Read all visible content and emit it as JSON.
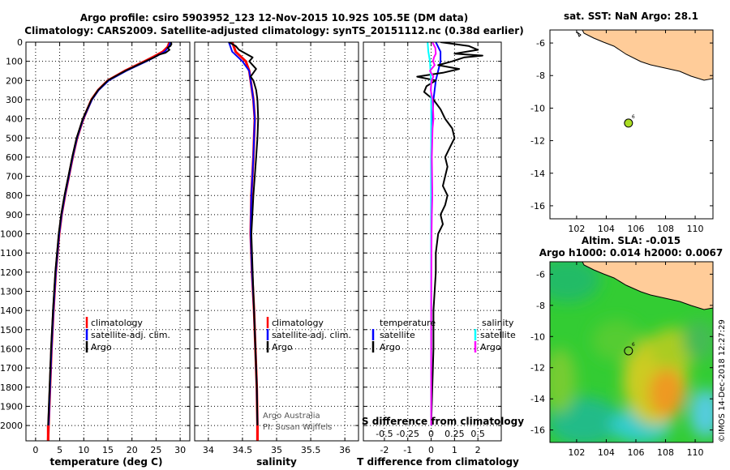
{
  "title": {
    "line1": "Argo profile: csiro 5903952_123 12-Nov-2015 10.92S 105.5E (DM data)",
    "line2": "Climatology: CARS2009. Satellite-adjusted climatology: synTS_20151112.nc (0.38d earlier)"
  },
  "colors": {
    "climatology": "#ff0000",
    "satellite": "#0000ff",
    "argo": "#000000",
    "sat_salinity": "#00ffff",
    "argo_salinity": "#ff00ff",
    "land": "#ffcc99"
  },
  "chart_data": [
    {
      "type": "line",
      "name": "temperature-profile",
      "xlabel": "temperature (deg C)",
      "xlim": [
        -2,
        32
      ],
      "ylim": [
        0,
        2080
      ],
      "xticks": [
        0,
        5,
        10,
        15,
        20,
        25,
        30
      ],
      "yticks": [
        0,
        100,
        200,
        300,
        400,
        500,
        600,
        700,
        800,
        900,
        1000,
        1100,
        1200,
        1300,
        1400,
        1500,
        1600,
        1700,
        1800,
        1900,
        2000
      ],
      "legend": [
        "climatology",
        "satellite-adj. clim.",
        "Argo"
      ],
      "series": [
        {
          "name": "climatology",
          "pressure": [
            0,
            25,
            50,
            75,
            100,
            150,
            200,
            250,
            300,
            400,
            500,
            600,
            700,
            800,
            900,
            1000,
            1200,
            1400,
            1600,
            1800,
            2000,
            2080
          ],
          "values": [
            27.8,
            27.4,
            26.4,
            24.6,
            22.6,
            18.5,
            15.0,
            13.0,
            11.6,
            9.9,
            8.6,
            7.7,
            6.9,
            6.1,
            5.4,
            4.9,
            4.2,
            3.7,
            3.3,
            3.0,
            2.7,
            2.6
          ]
        },
        {
          "name": "satellite-adj. clim.",
          "pressure": [
            0,
            25,
            50,
            75,
            100,
            150,
            200,
            250,
            300,
            400,
            500,
            600,
            700,
            800,
            900,
            1000,
            1200,
            1400,
            1600,
            1800,
            2000,
            2080
          ],
          "values": [
            28.0,
            27.6,
            26.8,
            25.0,
            23.0,
            18.8,
            15.2,
            13.1,
            11.7,
            9.9,
            8.6,
            7.7,
            6.9,
            6.1,
            5.4,
            4.9,
            4.2,
            3.7,
            3.3,
            3.0,
            2.7,
            2.6
          ]
        },
        {
          "name": "Argo",
          "pressure": [
            0,
            10,
            20,
            30,
            40,
            55,
            65,
            80,
            100,
            150,
            200,
            250,
            300,
            400,
            500,
            600,
            700,
            800,
            900,
            1000,
            1200,
            1400,
            1600,
            1800,
            2000
          ],
          "values": [
            28.1,
            28.2,
            28.0,
            27.4,
            27.8,
            27.0,
            25.6,
            24.6,
            22.8,
            18.6,
            15.0,
            13.0,
            11.6,
            9.8,
            8.5,
            7.6,
            6.8,
            6.0,
            5.3,
            4.8,
            4.1,
            3.6,
            3.2,
            2.9,
            2.6
          ]
        }
      ]
    },
    {
      "type": "line",
      "name": "salinity-profile",
      "xlabel": "salinity",
      "xlim": [
        33.8,
        36.2
      ],
      "ylim": [
        0,
        2080
      ],
      "xticks": [
        34,
        34.5,
        35,
        35.5,
        36
      ],
      "legend": [
        "climatology",
        "satellite-adj. clim.",
        "Argo"
      ],
      "annotation": [
        "Argo Australia",
        "PI: Susan Wijffels"
      ],
      "series": [
        {
          "name": "climatology",
          "pressure": [
            0,
            50,
            100,
            150,
            200,
            300,
            400,
            500,
            600,
            800,
            1000,
            1200,
            1400,
            1600,
            1800,
            2000,
            2080
          ],
          "values": [
            34.35,
            34.4,
            34.55,
            34.6,
            34.62,
            34.66,
            34.68,
            34.67,
            34.66,
            34.63,
            34.62,
            34.64,
            34.67,
            34.69,
            34.71,
            34.72,
            34.72
          ]
        },
        {
          "name": "satellite-adj. clim.",
          "pressure": [
            0,
            50,
            100,
            150,
            200,
            300,
            400,
            500,
            600,
            800,
            1000,
            1200,
            1400,
            1600,
            1800,
            2000,
            2080
          ],
          "values": [
            34.3,
            34.35,
            34.5,
            34.6,
            34.62,
            34.66,
            34.68,
            34.67,
            34.66,
            34.63,
            34.62,
            34.64,
            34.67,
            34.69,
            34.71,
            34.72,
            34.72
          ]
        },
        {
          "name": "Argo",
          "pressure": [
            0,
            10,
            20,
            40,
            60,
            80,
            100,
            140,
            180,
            200,
            250,
            300,
            400,
            500,
            600,
            800,
            1000,
            1200,
            1400,
            1600,
            1800,
            2000
          ],
          "values": [
            34.3,
            34.35,
            34.4,
            34.45,
            34.55,
            34.65,
            34.6,
            34.7,
            34.62,
            34.66,
            34.7,
            34.72,
            34.73,
            34.72,
            34.7,
            34.66,
            34.63,
            34.65,
            34.67,
            34.69,
            34.71,
            34.72
          ]
        }
      ]
    },
    {
      "type": "line",
      "name": "difference-profile",
      "xlabel": "T difference from climatology",
      "xlabel2": "S difference from climatology",
      "xlim": [
        -2.9,
        3.0
      ],
      "ylim": [
        0,
        2080
      ],
      "xticks": [
        -2,
        -1,
        0,
        1,
        2
      ],
      "x2ticks": [
        "-0.5",
        "-0.25",
        "0",
        "0.25",
        "0.5"
      ],
      "legend_left": {
        "title": "temperature",
        "items": [
          "satellite",
          "Argo"
        ]
      },
      "legend_right": {
        "title": "salinity",
        "items": [
          "satellite",
          "Argo"
        ]
      },
      "series": [
        {
          "name": "T satellite",
          "pressure": [
            0,
            50,
            100,
            150,
            200,
            300,
            400,
            600,
            800,
            1000,
            1500,
            2000
          ],
          "values": [
            0.2,
            0.4,
            0.4,
            0.3,
            0.2,
            0.1,
            0.05,
            0.0,
            0.0,
            0.0,
            0.0,
            0.0
          ]
        },
        {
          "name": "T Argo",
          "pressure": [
            0,
            20,
            40,
            60,
            70,
            80,
            100,
            120,
            140,
            160,
            180,
            200,
            230,
            260,
            300,
            350,
            400,
            450,
            500,
            550,
            600,
            650,
            700,
            750,
            800,
            850,
            900,
            950,
            1000,
            1100,
            1200,
            1400,
            1600,
            1800,
            2000
          ],
          "values": [
            0.4,
            1.6,
            2.0,
            1.0,
            2.2,
            1.4,
            0.9,
            0.3,
            1.2,
            0.5,
            -0.6,
            0.2,
            -0.2,
            -0.3,
            0.1,
            0.4,
            0.6,
            0.9,
            1.0,
            0.8,
            0.6,
            0.7,
            0.6,
            0.5,
            0.7,
            0.6,
            0.4,
            0.5,
            0.3,
            0.2,
            0.2,
            0.1,
            0.1,
            0.05,
            0.0
          ]
        },
        {
          "name": "S satellite",
          "pressure": [
            0,
            50,
            100,
            200,
            300,
            500,
            1000,
            1500,
            2000
          ],
          "values": [
            -0.15,
            -0.12,
            -0.05,
            -0.01,
            0.0,
            0.0,
            0.0,
            0.0,
            0.0
          ]
        },
        {
          "name": "S Argo",
          "pressure": [
            0,
            30,
            60,
            80,
            100,
            120,
            150,
            180,
            200,
            250,
            300,
            350,
            400,
            450,
            500,
            600,
            700,
            800,
            900,
            1000,
            1200,
            1400,
            1600,
            1800,
            2000
          ],
          "values": [
            0.05,
            0.18,
            0.2,
            0.12,
            0.08,
            0.15,
            -0.05,
            0.1,
            0.02,
            -0.02,
            0.06,
            0.08,
            0.1,
            0.06,
            0.05,
            0.03,
            0.04,
            0.05,
            0.03,
            0.02,
            0.01,
            0.0,
            0.0,
            0.0,
            0.0
          ]
        }
      ]
    },
    {
      "type": "scatter",
      "name": "location-map-sst",
      "title": "sat. SST: NaN Argo: 28.1",
      "xlim": [
        100.2,
        111.2
      ],
      "ylim": [
        -16.8,
        -5.2
      ],
      "xticks": [
        102,
        104,
        106,
        108,
        110
      ],
      "yticks": [
        -6,
        -8,
        -10,
        -12,
        -14,
        -16
      ],
      "points": [
        {
          "lon": 105.5,
          "lat": -10.92,
          "label": "6"
        }
      ]
    },
    {
      "type": "heatmap",
      "name": "location-map-sla",
      "title_line1": "Altim. SLA: -0.015",
      "title_line2": "Argo h1000: 0.014 h2000: 0.0067",
      "xlim": [
        100.2,
        111.2
      ],
      "ylim": [
        -16.8,
        -5.2
      ],
      "xticks": [
        102,
        104,
        106,
        108,
        110
      ],
      "yticks": [
        -6,
        -8,
        -10,
        -12,
        -14,
        -16
      ],
      "points": [
        {
          "lon": 105.5,
          "lat": -10.92,
          "label": "6"
        }
      ]
    }
  ],
  "credit": "©IMOS 14-Dec-2018 12:27:29"
}
